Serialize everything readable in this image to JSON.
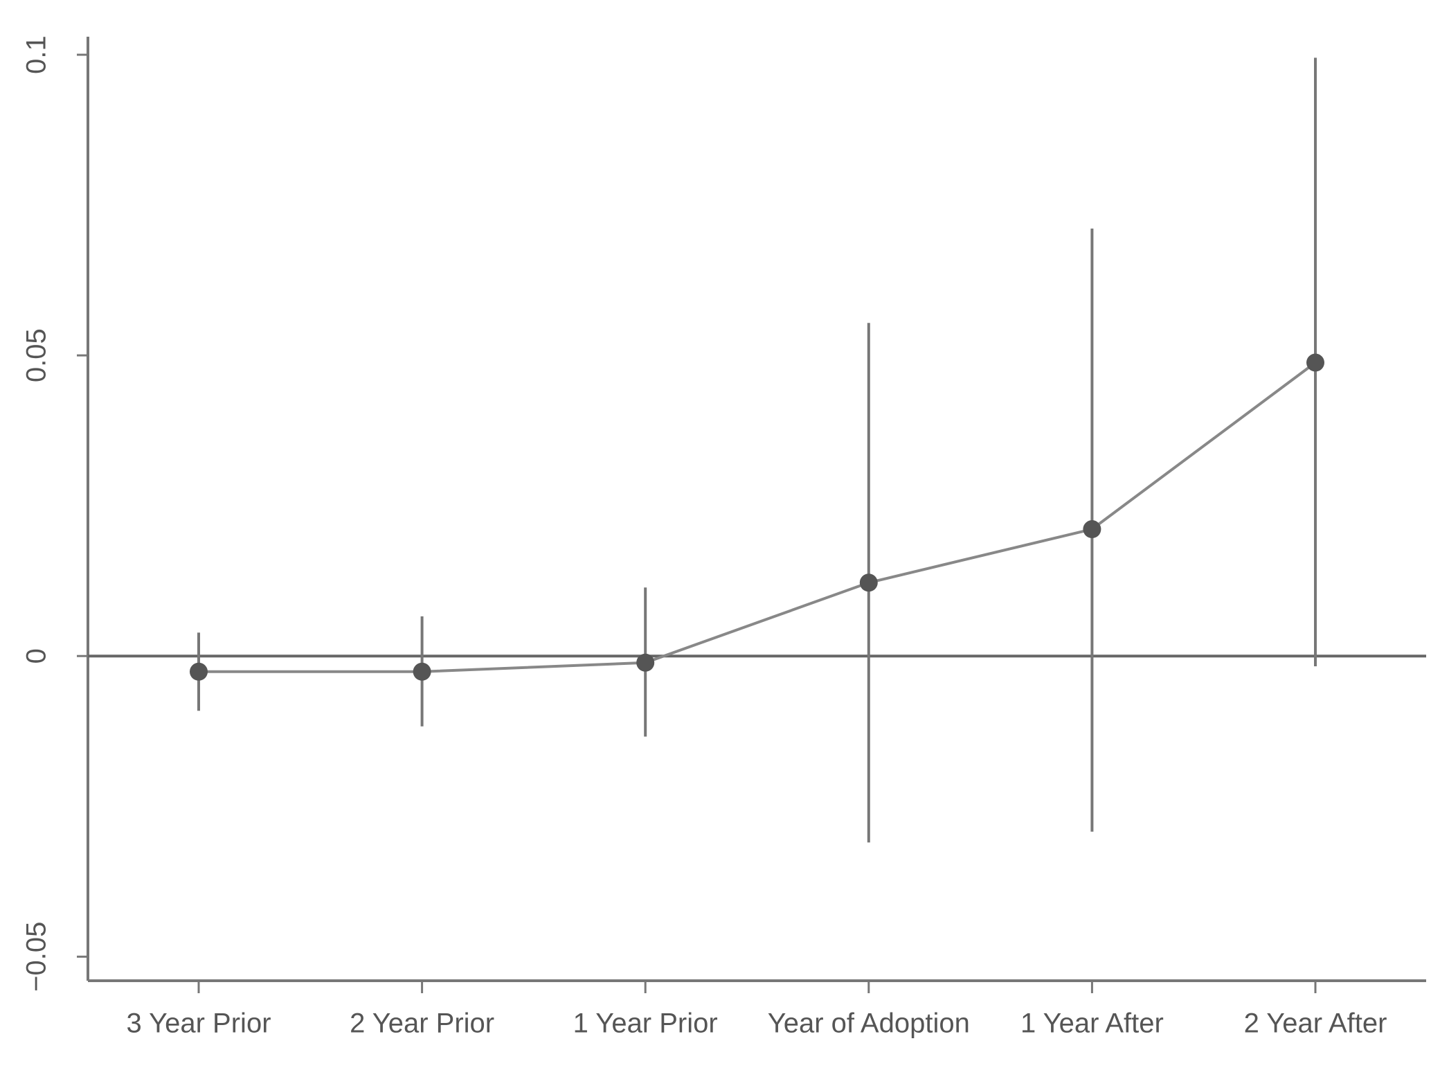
{
  "chart_data": {
    "type": "errorline",
    "categories": [
      "3 Year Prior",
      "2 Year Prior",
      "1 Year Prior",
      "Year of Adoption",
      "1 Year After",
      "2 Year After"
    ],
    "series": [
      {
        "color": "#555555",
        "values": [
          -0.0026,
          -0.0026,
          -0.0011,
          0.0122,
          0.0211,
          0.0488
        ],
        "ci_low": [
          -0.0091,
          -0.0117,
          -0.0134,
          -0.031,
          -0.0292,
          -0.0017
        ],
        "ci_high": [
          0.0039,
          0.0066,
          0.0114,
          0.0554,
          0.0711,
          0.0995
        ]
      }
    ],
    "hline": 0,
    "ylim": [
      -0.054,
      0.103
    ],
    "yticks": [
      {
        "value": -0.05,
        "label": "−0.05"
      },
      0,
      0.05,
      0.1
    ],
    "grid": false
  }
}
